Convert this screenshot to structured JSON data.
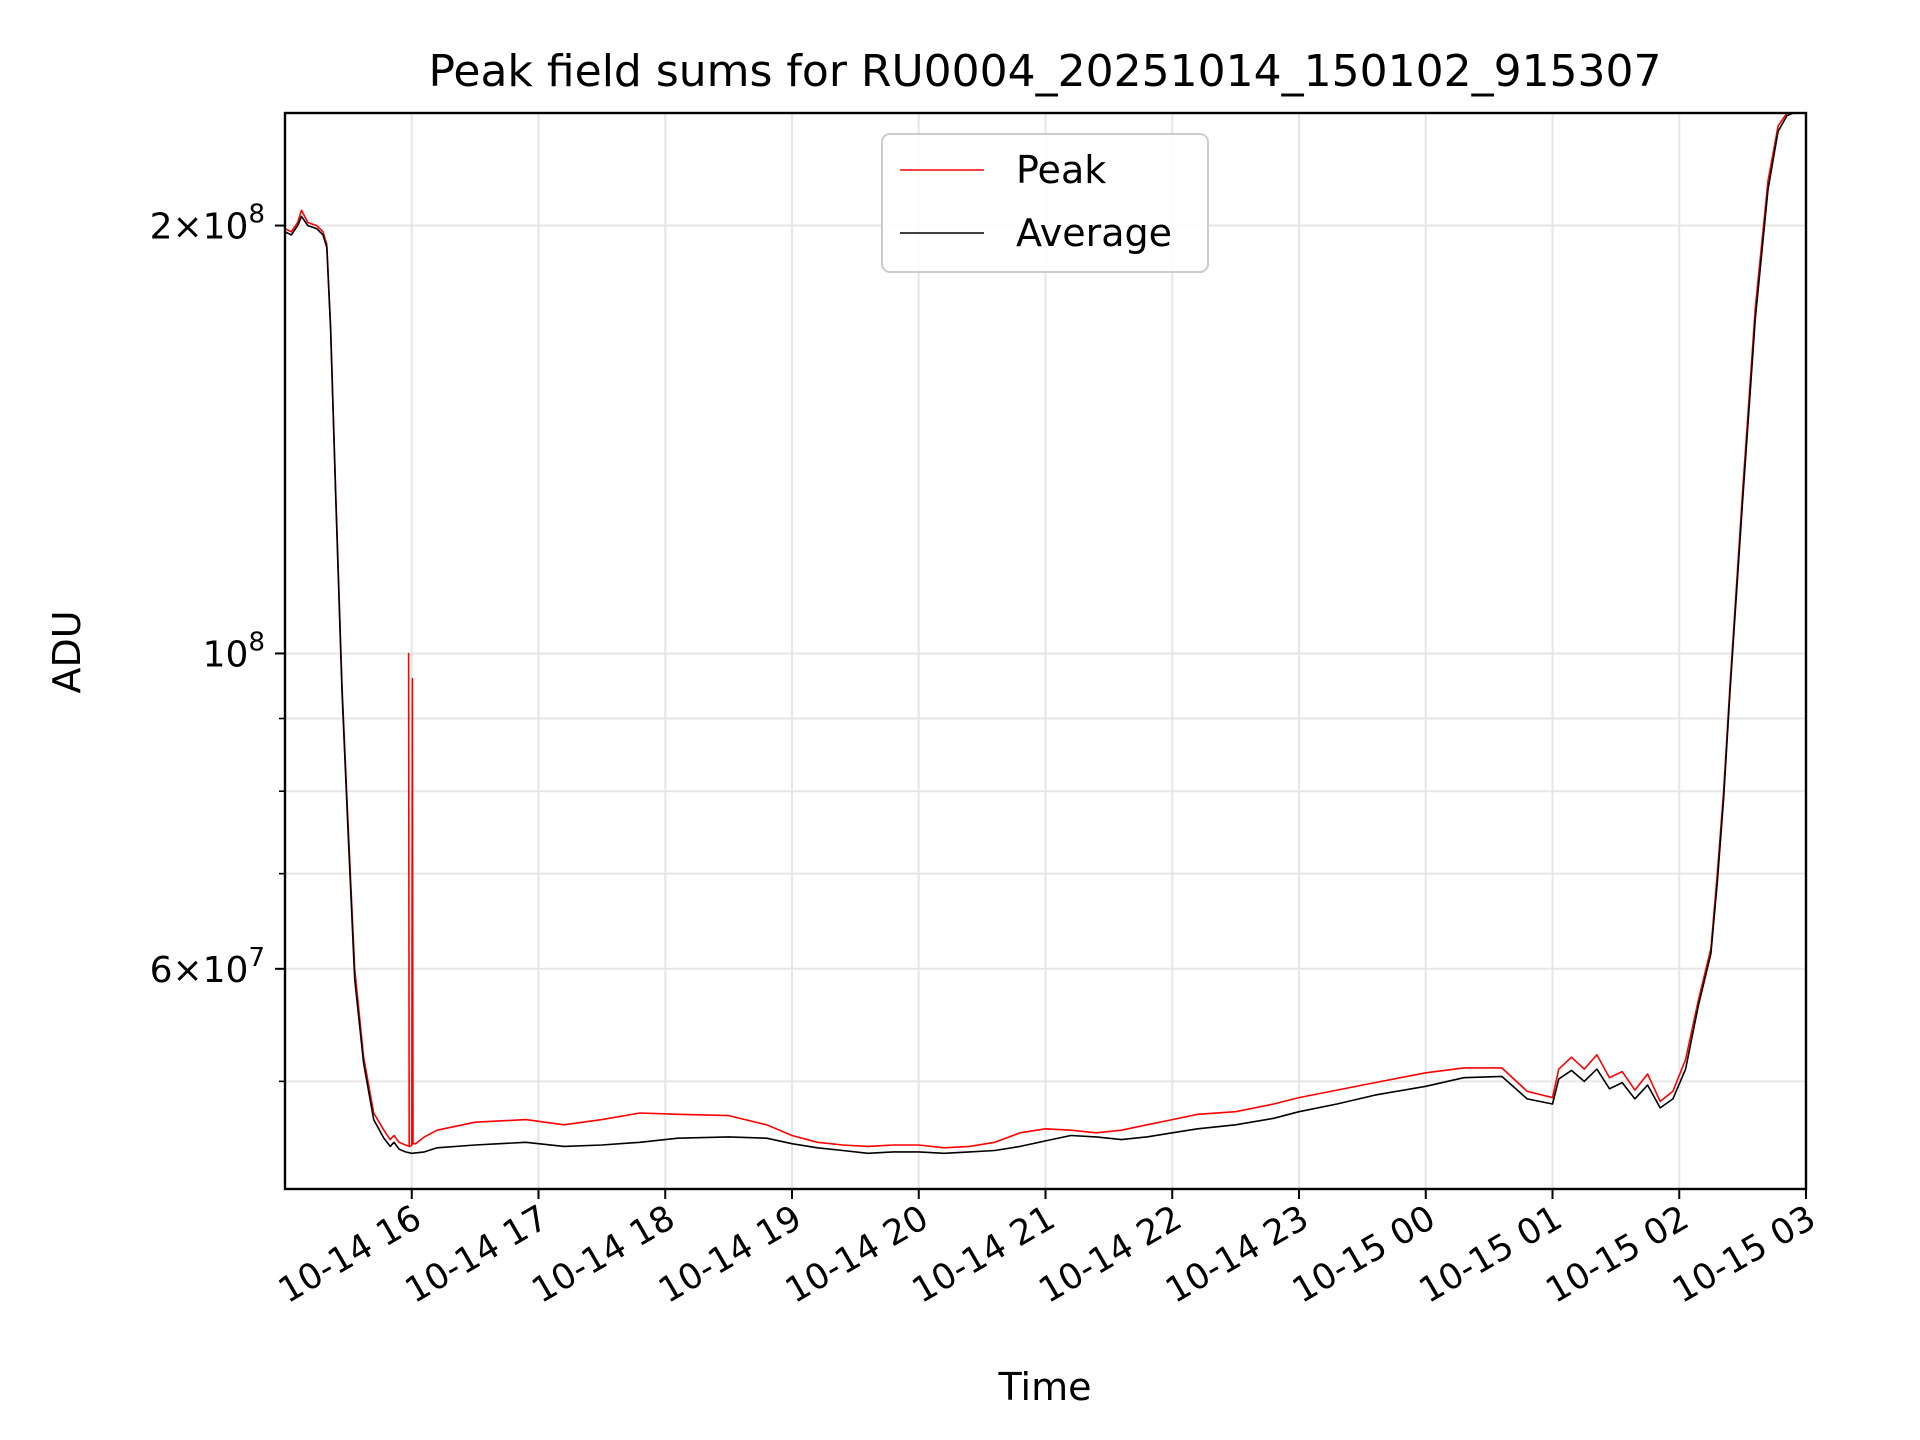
{
  "chart_data": {
    "type": "line",
    "title": "Peak field sums for RU0004_20251014_150102_915307",
    "xlabel": "Time",
    "ylabel": "ADU",
    "yscale": "log",
    "grid": true,
    "legend_location": "upper center",
    "x_unit": "hours since 2025-10-14 15:00",
    "xlim": [
      0.0,
      12.0
    ],
    "ylim": [
      42000000,
      240000000
    ],
    "x_ticks": [
      {
        "value": 1,
        "label": "10-14 16"
      },
      {
        "value": 2,
        "label": "10-14 17"
      },
      {
        "value": 3,
        "label": "10-14 18"
      },
      {
        "value": 4,
        "label": "10-14 19"
      },
      {
        "value": 5,
        "label": "10-14 20"
      },
      {
        "value": 6,
        "label": "10-14 21"
      },
      {
        "value": 7,
        "label": "10-14 22"
      },
      {
        "value": 8,
        "label": "10-14 23"
      },
      {
        "value": 9,
        "label": "10-15 00"
      },
      {
        "value": 10,
        "label": "10-15 01"
      },
      {
        "value": 11,
        "label": "10-15 02"
      },
      {
        "value": 12,
        "label": "10-15 03"
      }
    ],
    "y_major_ticks": [
      {
        "value": 200000000,
        "mant": "2",
        "exp": "8"
      },
      {
        "value": 100000000,
        "mant": "",
        "exp": "8"
      },
      {
        "value": 60000000,
        "mant": "6",
        "exp": "7"
      }
    ],
    "y_minor_ticks": [
      50000000,
      70000000,
      80000000,
      90000000
    ],
    "series": [
      {
        "name": "Peak",
        "color": "#ff0000",
        "x": [
          0.0,
          0.05,
          0.1,
          0.13,
          0.18,
          0.25,
          0.3,
          0.33,
          0.36,
          0.4,
          0.45,
          0.5,
          0.55,
          0.62,
          0.7,
          0.78,
          0.83,
          0.86,
          0.9,
          0.95,
          0.98,
          0.975,
          0.98,
          0.985,
          1.0,
          1.005,
          1.01,
          1.03,
          1.1,
          1.2,
          1.5,
          1.9,
          2.2,
          2.5,
          2.8,
          3.1,
          3.5,
          3.8,
          4.0,
          4.2,
          4.4,
          4.6,
          4.8,
          5.0,
          5.2,
          5.4,
          5.6,
          5.8,
          6.0,
          6.2,
          6.4,
          6.6,
          6.8,
          7.0,
          7.2,
          7.5,
          7.8,
          8.0,
          8.3,
          8.6,
          9.0,
          9.3,
          9.6,
          9.8,
          10.0,
          10.05,
          10.15,
          10.25,
          10.35,
          10.45,
          10.55,
          10.65,
          10.75,
          10.85,
          10.95,
          11.05,
          11.15,
          11.25,
          11.3,
          11.35,
          11.4,
          11.5,
          11.6,
          11.7,
          11.78,
          11.85,
          11.9,
          11.95,
          12.0
        ],
        "values": [
          199000000,
          198000000,
          201000000,
          205000000,
          201000000,
          200000000,
          198000000,
          194000000,
          170000000,
          130000000,
          95000000,
          75000000,
          60000000,
          52000000,
          47500000,
          46200000,
          45500000,
          45800000,
          45300000,
          45100000,
          45000000,
          100000000,
          45000000,
          45000000,
          45100000,
          96000000,
          45200000,
          45200000,
          45700000,
          46200000,
          46800000,
          47000000,
          46600000,
          47000000,
          47500000,
          47400000,
          47300000,
          46600000,
          45800000,
          45300000,
          45100000,
          45000000,
          45100000,
          45100000,
          44900000,
          45000000,
          45300000,
          46000000,
          46300000,
          46200000,
          46000000,
          46200000,
          46600000,
          47000000,
          47400000,
          47600000,
          48200000,
          48700000,
          49300000,
          49900000,
          50700000,
          51100000,
          51100000,
          49200000,
          48700000,
          51000000,
          52000000,
          51000000,
          52200000,
          50300000,
          50800000,
          49300000,
          50600000,
          48400000,
          49200000,
          51800000,
          57000000,
          62000000,
          70000000,
          80000000,
          95000000,
          130000000,
          175000000,
          215000000,
          235000000,
          240000000,
          240000000,
          240000000,
          240000000
        ]
      },
      {
        "name": "Average",
        "color": "#000000",
        "x": [
          0.0,
          0.05,
          0.1,
          0.13,
          0.18,
          0.25,
          0.3,
          0.33,
          0.36,
          0.4,
          0.45,
          0.5,
          0.55,
          0.62,
          0.7,
          0.78,
          0.83,
          0.86,
          0.9,
          0.95,
          1.0,
          1.1,
          1.2,
          1.5,
          1.9,
          2.2,
          2.5,
          2.8,
          3.1,
          3.5,
          3.8,
          4.0,
          4.2,
          4.4,
          4.6,
          4.8,
          5.0,
          5.2,
          5.4,
          5.6,
          5.8,
          6.0,
          6.2,
          6.4,
          6.6,
          6.8,
          7.0,
          7.2,
          7.5,
          7.8,
          8.0,
          8.3,
          8.6,
          9.0,
          9.3,
          9.6,
          9.8,
          10.0,
          10.05,
          10.15,
          10.25,
          10.35,
          10.45,
          10.55,
          10.65,
          10.75,
          10.85,
          10.95,
          11.05,
          11.15,
          11.25,
          11.3,
          11.35,
          11.4,
          11.5,
          11.6,
          11.7,
          11.78,
          11.85,
          11.9,
          11.95,
          12.0
        ],
        "values": [
          198000000,
          197000000,
          200000000,
          203000000,
          200000000,
          199000000,
          197000000,
          193000000,
          169000000,
          129000000,
          94000000,
          74000000,
          59000000,
          51500000,
          47000000,
          45600000,
          45000000,
          45300000,
          44800000,
          44600000,
          44500000,
          44600000,
          44900000,
          45100000,
          45300000,
          45000000,
          45100000,
          45300000,
          45600000,
          45700000,
          45600000,
          45200000,
          44900000,
          44700000,
          44500000,
          44600000,
          44600000,
          44500000,
          44600000,
          44700000,
          45000000,
          45400000,
          45800000,
          45700000,
          45500000,
          45700000,
          46000000,
          46300000,
          46600000,
          47100000,
          47600000,
          48200000,
          48900000,
          49600000,
          50300000,
          50400000,
          48600000,
          48200000,
          50200000,
          50900000,
          50000000,
          51000000,
          49400000,
          49900000,
          48600000,
          49700000,
          47900000,
          48600000,
          51000000,
          56500000,
          61500000,
          69000000,
          79000000,
          94000000,
          128000000,
          172000000,
          212000000,
          233000000,
          239000000,
          240000000,
          240000000,
          240000000
        ]
      }
    ]
  }
}
